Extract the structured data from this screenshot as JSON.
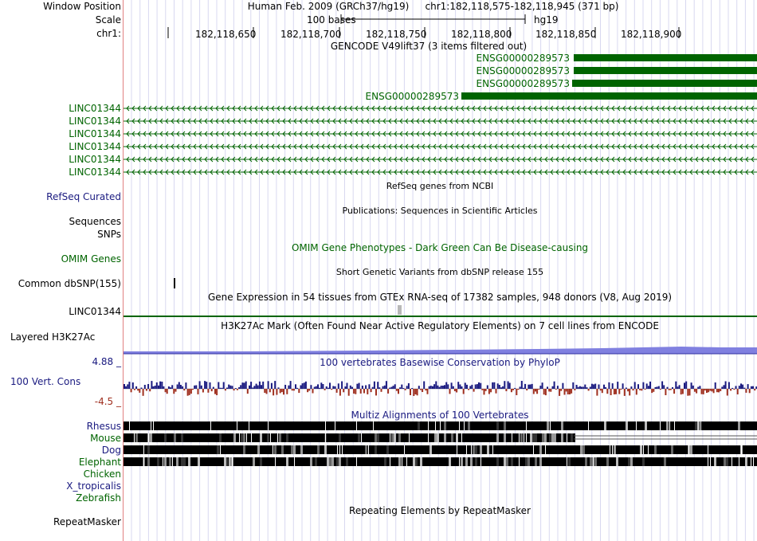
{
  "header": {
    "window_position_label": "Window Position",
    "scale_label": "Scale",
    "chrom_label": "chr1:",
    "assembly": "Human Feb. 2009 (GRCh37/hg19)",
    "position": "chr1:182,118,575-182,118,945 (371 bp)",
    "scale_text": "100 bases",
    "db": "hg19",
    "ticks": [
      "182,118,650",
      "182,118,700",
      "182,118,750",
      "182,118,800",
      "182,118,850",
      "182,118,900"
    ]
  },
  "gencode": {
    "title": "GENCODE V49lift37 (3 items filtered out)",
    "items": [
      "ENSG00000289573",
      "ENSG00000289573",
      "ENSG00000289573",
      "ENSG00000289573"
    ],
    "color": "#006400"
  },
  "lncrna": {
    "labels": [
      "LINC01344",
      "LINC01344",
      "LINC01344",
      "LINC01344",
      "LINC01344",
      "LINC01344"
    ],
    "color": "#006400"
  },
  "refseq": {
    "label": "RefSeq Curated",
    "title": "RefSeq genes from NCBI",
    "color": "#1a1a80"
  },
  "publications": {
    "label_sequences": "Sequences",
    "title": "Publications: Sequences in Scientific Articles"
  },
  "snps": {
    "label": "SNPs"
  },
  "omim": {
    "label": "OMIM Genes",
    "title": "OMIM Gene Phenotypes - Dark Green Can Be Disease-causing",
    "color": "#006400"
  },
  "dbsnp": {
    "label": "Common dbSNP(155)",
    "title": "Short Genetic Variants from dbSNP release 155"
  },
  "gtex": {
    "label": "LINC01344",
    "title": "Gene Expression in 54 tissues from GTEx RNA-seq of 17382 samples, 948 donors (V8, Aug 2019)"
  },
  "h3k27ac": {
    "label": "Layered H3K27Ac",
    "title": "H3K27Ac Mark (Often Found Near Active Regulatory Elements) on 7 cell lines from ENCODE",
    "color": "#8080e0"
  },
  "cons": {
    "label": "100 Vert. Cons",
    "title": "100 vertebrates Basewise Conservation by PhyloP",
    "max": "4.88 _",
    "min": "-4.5 _",
    "pos_color": "#1a1a80",
    "neg_color": "#a03020"
  },
  "multiz": {
    "title": "Multiz Alignments of 100 Vertebrates",
    "species": [
      "Rhesus",
      "Mouse",
      "Dog",
      "Elephant",
      "Chicken",
      "X_tropicalis",
      "Zebrafish"
    ],
    "color": "#1a1a80"
  },
  "repeatmasker": {
    "label": "RepeatMasker",
    "title": "Repeating Elements by RepeatMasker"
  }
}
